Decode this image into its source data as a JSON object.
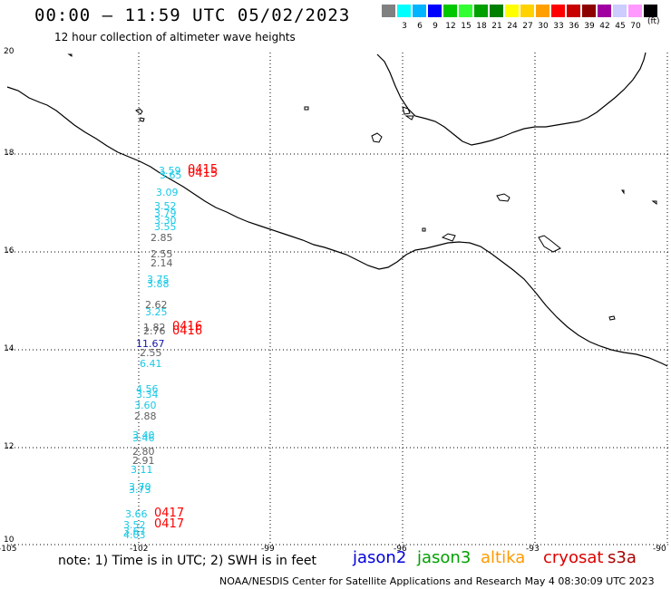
{
  "header": {
    "title": "00:00 – 11:59 UTC 05/02/2023",
    "subtitle": "12 hour collection of altimeter wave heights"
  },
  "legend": {
    "unit": "(ft)",
    "colors": [
      "#808080",
      "#00ffff",
      "#00b4ff",
      "#0000ff",
      "#00c800",
      "#32ff32",
      "#00a000",
      "#008000",
      "#ffff00",
      "#ffd200",
      "#ffa000",
      "#ff0000",
      "#c80000",
      "#8c0000",
      "#a000a0",
      "#ccccff",
      "#ff99ff",
      "#000000"
    ],
    "labels": [
      "3",
      "6",
      "9",
      "12",
      "15",
      "18",
      "21",
      "24",
      "27",
      "30",
      "33",
      "36",
      "39",
      "42",
      "45",
      "70"
    ]
  },
  "axes": {
    "lat_labels": [
      "20",
      "18",
      "16",
      "14",
      "12",
      "10"
    ],
    "lon_labels": [
      "-105",
      "-102",
      "-99",
      "-96",
      "-93",
      "-90"
    ]
  },
  "wave_colors": {
    "cyan": "#18c8e6",
    "gray": "#606060",
    "blue": "#1414aa"
  },
  "waves": [
    {
      "label": "3.59",
      "color": "cyan"
    },
    {
      "label": "3.65",
      "color": "cyan"
    },
    {
      "label": "3.09",
      "color": "cyan"
    },
    {
      "label": "3.52",
      "color": "cyan"
    },
    {
      "label": "3.79",
      "color": "cyan"
    },
    {
      "label": "3.30",
      "color": "cyan"
    },
    {
      "label": "3.55",
      "color": "cyan"
    },
    {
      "label": "2.85",
      "color": "gray"
    },
    {
      "label": "2.55",
      "color": "gray"
    },
    {
      "label": "2.14",
      "color": "gray"
    },
    {
      "label": "3.75",
      "color": "cyan"
    },
    {
      "label": "3.88",
      "color": "cyan"
    },
    {
      "label": "2.62",
      "color": "gray"
    },
    {
      "label": "3.25",
      "color": "cyan"
    },
    {
      "label": "1.82",
      "color": "gray"
    },
    {
      "label": "2.76",
      "color": "gray"
    },
    {
      "label": "11.67",
      "color": "blue"
    },
    {
      "label": "2.55",
      "color": "gray"
    },
    {
      "label": "6.41",
      "color": "cyan"
    },
    {
      "label": "4.56",
      "color": "cyan"
    },
    {
      "label": "3.34",
      "color": "cyan"
    },
    {
      "label": "3.60",
      "color": "cyan"
    },
    {
      "label": "2.88",
      "color": "gray"
    },
    {
      "label": "3.40",
      "color": "cyan"
    },
    {
      "label": "3.46",
      "color": "cyan"
    },
    {
      "label": "2.80",
      "color": "gray"
    },
    {
      "label": "2.91",
      "color": "gray"
    },
    {
      "label": "3.11",
      "color": "cyan"
    },
    {
      "label": "3.70",
      "color": "cyan"
    },
    {
      "label": "3.73",
      "color": "cyan"
    },
    {
      "label": "3.66",
      "color": "cyan"
    },
    {
      "label": "3.52",
      "color": "cyan"
    },
    {
      "label": "3.67",
      "color": "cyan"
    },
    {
      "label": "4.03",
      "color": "cyan"
    }
  ],
  "passes": [
    "0415",
    "0415",
    "0416",
    "0416",
    "0417",
    "0417"
  ],
  "footer": {
    "note": "note: 1) Time is in UTC; 2) SWH is in feet",
    "satellites": [
      {
        "name": "jason2",
        "color": "#0000dd"
      },
      {
        "name": "jason3",
        "color": "#00a000"
      },
      {
        "name": "altika",
        "color": "#ff9900"
      },
      {
        "name": "cryosat",
        "color": "#dd0000"
      },
      {
        "name": "s3a",
        "color": "#aa0000"
      }
    ],
    "credit": "NOAA/NESDIS Center for Satellite Applications and Research    May  4 08:30:09 UTC 2023"
  }
}
